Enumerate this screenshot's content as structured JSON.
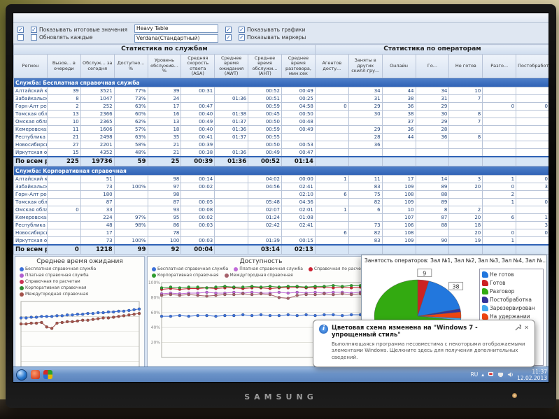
{
  "monitor": {
    "brand": "SAMSUNG"
  },
  "app": {
    "toolbar": {
      "cb_totals": "Показывать итоговые значения",
      "cb_refresh": "Обновлять каждые",
      "input_table": "Heavy Table",
      "input_font": "Verdana(Стандартный)",
      "cb_graphs": "Показывать графики",
      "cb_markers": "Показывать маркеры"
    }
  },
  "table": {
    "left_title": "Статистика по службам",
    "right_title": "Статистика по операторам",
    "columns": [
      "Регион",
      "Вызов... в очереди",
      "Обслуж... за сегодня",
      "Доступно... %",
      "Уровень обслужив... %",
      "Средняя скорость ответа (ASA)",
      "Среднее время ожидания (AWT)",
      "Среднее время обслужи... (АНТ)",
      "Среднее время разговора, мин:сек",
      "Агентов досту...",
      "Заняты в других скилл-гру...",
      "Онлайн",
      "Го...",
      "Не готов",
      "Разго...",
      "Постобработка"
    ],
    "sections": [
      {
        "header": "Служба: Бесплатная справочная служба",
        "rows": [
          [
            "Алтайский край",
            "39",
            "3521",
            "77%",
            "39",
            "00:31",
            "",
            "00:52",
            "00:49",
            "",
            "34",
            "44",
            "34",
            "10",
            "",
            ""
          ],
          [
            "Забайкальский край",
            "8",
            "1047",
            "73%",
            "24",
            "",
            "01:36",
            "00:51",
            "00:25",
            "",
            "31",
            "38",
            "31",
            "7",
            "",
            ""
          ],
          [
            "Горн-Алт республика",
            "2",
            "252",
            "63%",
            "17",
            "00:47",
            "",
            "00:59",
            "04:58",
            "0",
            "29",
            "36",
            "29",
            "",
            "0",
            "0"
          ],
          [
            "Томская область",
            "13",
            "2366",
            "60%",
            "16",
            "00:40",
            "01:38",
            "00:45",
            "00:50",
            "",
            "30",
            "38",
            "30",
            "8",
            "",
            ""
          ],
          [
            "Омская область",
            "10",
            "2365",
            "62%",
            "13",
            "00:49",
            "01:37",
            "00:50",
            "00:48",
            "",
            "",
            "37",
            "29",
            "7",
            "",
            ""
          ],
          [
            "Кемеровская область",
            "11",
            "1606",
            "57%",
            "18",
            "00:40",
            "01:36",
            "00:59",
            "00:49",
            "",
            "29",
            "36",
            "28",
            "",
            "",
            ""
          ],
          [
            "Республика Бурятия",
            "21",
            "2498",
            "63%",
            "35",
            "00:41",
            "01:37",
            "00:55",
            "",
            "",
            "28",
            "44",
            "36",
            "8",
            "",
            ""
          ],
          [
            "Новосибирская область",
            "27",
            "2201",
            "58%",
            "21",
            "00:39",
            "",
            "00:50",
            "00:53",
            "",
            "36",
            "",
            "",
            "",
            "",
            ""
          ],
          [
            "Иркутская область",
            "15",
            "4352",
            "48%",
            "21",
            "00:38",
            "01:36",
            "00:49",
            "00:47",
            "",
            "",
            "",
            "",
            "",
            "",
            ""
          ]
        ],
        "totals": [
          "По всем регио...",
          "225",
          "19736",
          "59",
          "25",
          "00:39",
          "01:36",
          "00:52",
          "01:14",
          "",
          "",
          "",
          "",
          "",
          "",
          ""
        ]
      },
      {
        "header": "Служба: Корпоративная справочная",
        "rows": [
          [
            "Алтайский край",
            "",
            "51",
            "",
            "98",
            "00:14",
            "",
            "04:02",
            "00:00",
            "1",
            "11",
            "17",
            "14",
            "3",
            "1",
            "0"
          ],
          [
            "Забайкальский край",
            "",
            "73",
            "100%",
            "97",
            "00:02",
            "",
            "04:56",
            "02:41",
            "",
            "83",
            "109",
            "89",
            "20",
            "0",
            "3"
          ],
          [
            "Горн-Алт республика",
            "",
            "180",
            "",
            "98",
            "",
            "",
            "",
            "02:10",
            "6",
            "75",
            "108",
            "88",
            "",
            "2",
            ""
          ],
          [
            "Томская область",
            "",
            "87",
            "",
            "87",
            "00:05",
            "",
            "05:48",
            "04:36",
            "",
            "82",
            "109",
            "89",
            "",
            "1",
            "0"
          ],
          [
            "Омская область",
            "0",
            "33",
            "",
            "93",
            "00:08",
            "",
            "02:07",
            "02:01",
            "1",
            "6",
            "10",
            "8",
            "2",
            "",
            ""
          ],
          [
            "Кемеровская область",
            "",
            "224",
            "97%",
            "95",
            "00:02",
            "",
            "01:24",
            "01:08",
            "",
            "",
            "107",
            "87",
            "20",
            "6",
            "1"
          ],
          [
            "Республика Бурятия",
            "",
            "48",
            "98%",
            "86",
            "00:03",
            "",
            "02:42",
            "02:41",
            "",
            "73",
            "106",
            "88",
            "18",
            "",
            "3"
          ],
          [
            "Новосибирская область",
            "",
            "17",
            "",
            "78",
            "",
            "",
            "",
            "",
            "6",
            "82",
            "108",
            "",
            "20",
            "0",
            "0"
          ],
          [
            "Иркутская область",
            "",
            "73",
            "100%",
            "100",
            "00:03",
            "",
            "01:39",
            "00:15",
            "",
            "83",
            "109",
            "90",
            "19",
            "1",
            ""
          ]
        ],
        "totals": [
          "По всем регио...",
          "0",
          "1218",
          "99",
          "92",
          "00:04",
          "",
          "03:14",
          "02:13",
          "",
          "",
          "",
          "",
          "",
          "",
          ""
        ]
      }
    ]
  },
  "chart_data": [
    {
      "type": "line",
      "title": "Среднее время ожидания",
      "ylim": [
        0,
        100
      ],
      "yticks": [
        20,
        40,
        60,
        80,
        100
      ],
      "ytick_labels": false,
      "series": [
        {
          "name": "Бесплатная справочная служба",
          "color": "#3a6fd8",
          "values": [
            78,
            78,
            79,
            79,
            80,
            80,
            80,
            81,
            81,
            82,
            82,
            83,
            83,
            84,
            84,
            85,
            85,
            86,
            86,
            87,
            87,
            88,
            89,
            90
          ]
        },
        {
          "name": "Платная справочная служба",
          "color": "#b05fd0",
          "values": [
            4,
            4,
            4,
            4,
            5,
            4,
            4,
            4,
            5,
            4,
            4,
            5,
            4,
            4,
            5,
            4,
            5,
            4,
            4,
            5,
            4,
            5,
            5,
            5
          ]
        },
        {
          "name": "Справочная по расчетам",
          "color": "#cc3355",
          "values": []
        },
        {
          "name": "Корпоративная справочная",
          "color": "#2e8b2e",
          "values": []
        },
        {
          "name": "Междугородная справочная",
          "color": "#a3524a",
          "values": [
            70,
            70,
            71,
            71,
            72,
            66,
            64,
            71,
            72,
            73,
            73,
            74,
            75,
            75,
            76,
            77,
            78,
            78,
            79,
            80,
            81,
            82,
            83,
            84
          ]
        }
      ]
    },
    {
      "type": "line",
      "title": "Доступность",
      "ylim": [
        0,
        100
      ],
      "yticks": [
        20,
        40,
        60,
        80,
        100
      ],
      "ytick_labels": true,
      "series": [
        {
          "name": "Бесплатная справочная служба",
          "color": "#3a6fd8",
          "values": [
            55,
            55,
            56,
            55,
            56,
            56,
            55,
            56,
            56,
            57,
            56,
            57,
            56,
            56,
            57,
            56,
            57,
            56,
            57,
            57,
            56,
            57,
            57,
            57
          ]
        },
        {
          "name": "Платная справочная служба",
          "color": "#c06ad8",
          "values": [
            85,
            86,
            85,
            86,
            86,
            87,
            86,
            86,
            87,
            86,
            87,
            86,
            86,
            87,
            86,
            87,
            86,
            87,
            86,
            87,
            87,
            86,
            87,
            85
          ]
        },
        {
          "name": "Справочная по расчетам",
          "color": "#cc2233",
          "values": [
            91,
            92,
            91,
            92,
            92,
            93,
            92,
            93,
            93,
            92,
            93,
            93,
            92,
            93,
            93,
            94,
            93,
            93,
            94,
            93,
            94,
            93,
            94,
            94
          ]
        },
        {
          "name": "Корпоративная справочная",
          "color": "#2e9b2e",
          "values": [
            93,
            94,
            93,
            94,
            94,
            93,
            94,
            95,
            94,
            94,
            95,
            94,
            95,
            94,
            95,
            95,
            94,
            95,
            95,
            96,
            95,
            96,
            96,
            97
          ]
        },
        {
          "name": "Междугородная справочная",
          "color": "#a5606a",
          "values": [
            83,
            84,
            83,
            84,
            83,
            82,
            83,
            84,
            84,
            85,
            84,
            85,
            84,
            80,
            79,
            83,
            84,
            84,
            85,
            84,
            85,
            84,
            85,
            76
          ]
        }
      ]
    },
    {
      "type": "line",
      "title": "",
      "ylim": [
        0,
        100
      ],
      "yticks": [
        20,
        40,
        60,
        80,
        100
      ],
      "ytick_labels": true,
      "tick_suffix": "%",
      "series": []
    },
    {
      "type": "pie",
      "title": "Занятость операторов: Зал №1, Зал №2, Зал №3, Зал №4, Зал №...",
      "slices": [
        {
          "name": "Готов",
          "value": 9,
          "color": "#cc2222",
          "label": "9"
        },
        {
          "name": "Не готов",
          "value": 38,
          "color": "#2277dd",
          "label": "38"
        },
        {
          "name": "Постобработка",
          "value": 3,
          "color": "#333399",
          "label": ""
        },
        {
          "name": "На удержании",
          "value": 6,
          "color": "#ee4411",
          "label": ""
        },
        {
          "name": "Зарезервирован",
          "value": 2,
          "color": "#44aaee",
          "label": ""
        },
        {
          "name": "Разговор",
          "value": 158,
          "color": "#33aa11",
          "label": "158"
        }
      ],
      "legend": [
        {
          "label": "Не готов",
          "color": "#2277dd"
        },
        {
          "label": "Готов",
          "color": "#cc2222"
        },
        {
          "label": "Разговор",
          "color": "#33aa11"
        },
        {
          "label": "Постобработка",
          "color": "#333399"
        },
        {
          "label": "Зарезервирован",
          "color": "#44aaee"
        },
        {
          "label": "На удержании",
          "color": "#ee4411"
        }
      ]
    }
  ],
  "balloon": {
    "title": "Цветовая схема изменена на \"Windows 7 - упрощенный стиль\"",
    "body": "Выполняющаяся программа несовместима с некоторыми отображаемыми элементами Windows. Щелкните здесь для получения дополнительных сведений.",
    "close": "✕"
  },
  "taskbar": {
    "lang": "RU",
    "tray_expand": "▴",
    "time": "11:37",
    "date": "12.02.2013"
  }
}
